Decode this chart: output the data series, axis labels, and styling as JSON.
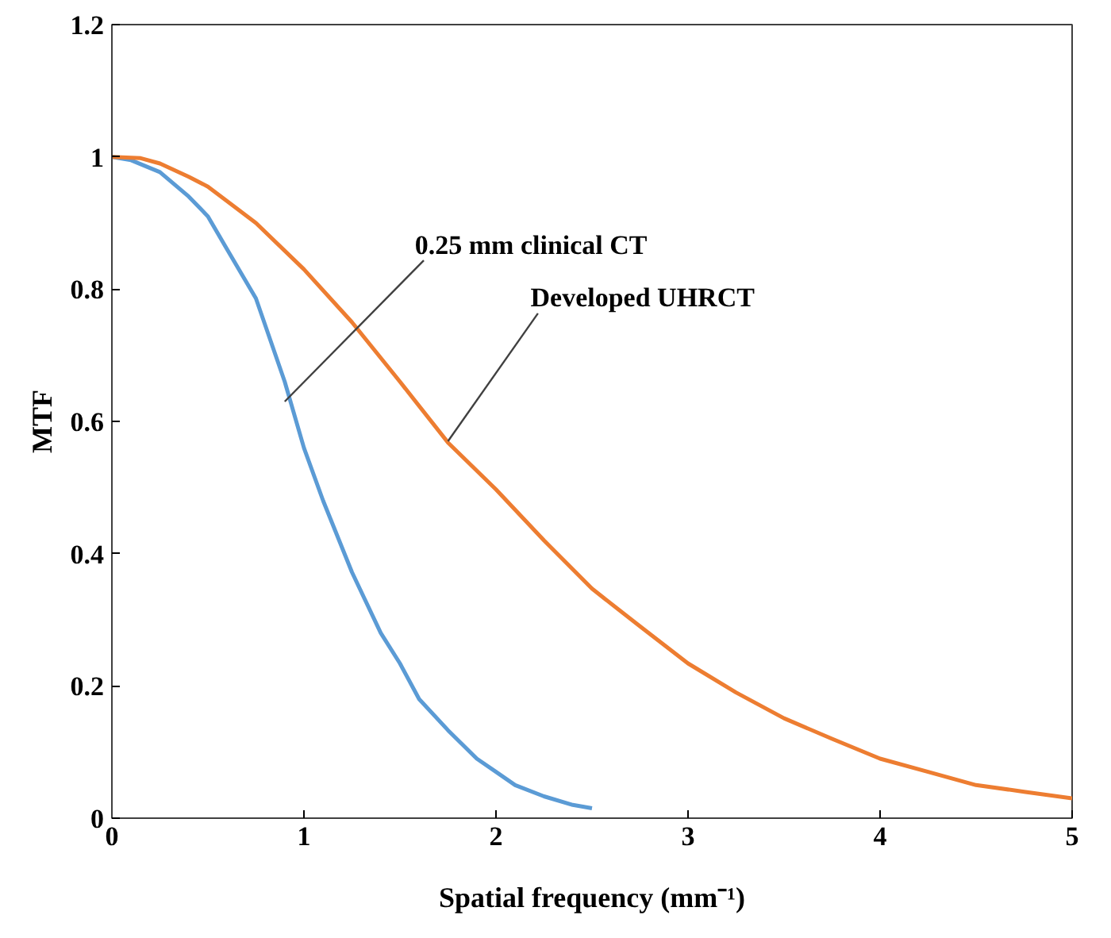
{
  "chart_data": {
    "type": "line",
    "xlabel": "Spatial frequency (mm⁻¹)",
    "ylabel": "MTF",
    "xlim": [
      0,
      5
    ],
    "xticks": [
      0,
      1,
      2,
      3,
      4,
      5
    ],
    "ylim": [
      0,
      1.2
    ],
    "yticks": [
      0,
      0.2,
      0.4,
      0.6,
      0.8,
      1,
      1.2
    ],
    "grid": false,
    "line_style": "solid",
    "marker": "none",
    "series": [
      {
        "color": "#5b9bd5",
        "x": [
          0,
          0.1,
          0.25,
          0.4,
          0.5,
          0.6,
          0.75,
          0.9,
          1.0,
          1.1,
          1.25,
          1.4,
          1.5,
          1.6,
          1.75,
          1.9,
          2.0,
          2.1,
          2.25,
          2.4,
          2.5
        ],
        "values": [
          1,
          0.995,
          0.977,
          0.94,
          0.91,
          0.86,
          0.786,
          0.66,
          0.56,
          0.48,
          0.372,
          0.28,
          0.234,
          0.18,
          0.133,
          0.09,
          0.07,
          0.05,
          0.033,
          0.02,
          0.015
        ]
      },
      {
        "color": "#ed7d31",
        "x": [
          0,
          0.15,
          0.25,
          0.4,
          0.5,
          0.75,
          1.0,
          1.25,
          1.5,
          1.75,
          2.0,
          2.25,
          2.5,
          2.75,
          3.0,
          3.25,
          3.5,
          3.75,
          4.0,
          4.25,
          4.5,
          4.75,
          5.0
        ],
        "values": [
          1,
          0.998,
          0.99,
          0.97,
          0.955,
          0.9,
          0.83,
          0.75,
          0.66,
          0.568,
          0.497,
          0.42,
          0.347,
          0.29,
          0.234,
          0.19,
          0.151,
          0.12,
          0.09,
          0.07,
          0.05,
          0.04,
          0.03
        ]
      }
    ],
    "annotations": [
      {
        "text": "0.25 mm clinical CT",
        "x": 0.9,
        "y": 0.63
      },
      {
        "text": "Developed UHRCT",
        "x": 1.75,
        "y": 0.57
      }
    ]
  }
}
